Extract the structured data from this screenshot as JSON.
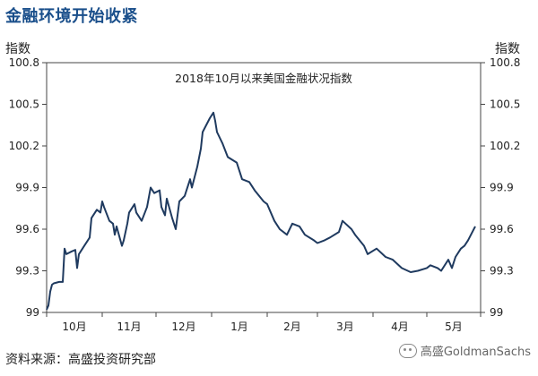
{
  "header": {
    "title": "金融环境开始收紧"
  },
  "axis_unit": {
    "left": "指数",
    "right": "指数"
  },
  "source": "资料来源：高盛投资研究部",
  "watermark": "高盛GoldmanSachs",
  "colors": {
    "title": "#1a4f8b",
    "line": "#1f3a5f",
    "axis": "#444444"
  },
  "chart_data": {
    "type": "line",
    "title": "2018年10月以来美国金融状况指数",
    "xlabel": "",
    "ylabel": "指数",
    "ylim": [
      99.0,
      100.8
    ],
    "yticks": [
      99,
      99.3,
      99.6,
      99.9,
      100.2,
      100.5,
      100.8
    ],
    "ytick_labels": [
      "99",
      "99.3",
      "99.6",
      "99.9",
      "100.2",
      "100.5",
      "100.8"
    ],
    "xtick_labels": [
      "10月",
      "11月",
      "12月",
      "1月",
      "2月",
      "3月",
      "4月",
      "5月"
    ],
    "grid": false,
    "legend": "none",
    "series": [
      {
        "x": [
          "2018-10-01",
          "2018-10-02",
          "2018-10-03",
          "2018-10-04",
          "2018-10-05",
          "2018-10-08",
          "2018-10-10",
          "2018-10-11",
          "2018-10-12",
          "2018-10-15",
          "2018-10-17",
          "2018-10-18",
          "2018-10-19",
          "2018-10-22",
          "2018-10-24",
          "2018-10-25",
          "2018-10-26",
          "2018-10-29",
          "2018-10-31",
          "2018-11-01",
          "2018-11-02",
          "2018-11-05",
          "2018-11-07",
          "2018-11-08",
          "2018-11-09",
          "2018-11-12",
          "2018-11-13",
          "2018-11-15",
          "2018-11-16",
          "2018-11-19",
          "2018-11-20",
          "2018-11-23",
          "2018-11-26",
          "2018-11-28",
          "2018-11-30",
          "2018-12-03",
          "2018-12-04",
          "2018-12-06",
          "2018-12-07",
          "2018-12-10",
          "2018-12-12",
          "2018-12-14",
          "2018-12-17",
          "2018-12-18",
          "2018-12-20",
          "2018-12-21",
          "2018-12-24",
          "2018-12-26",
          "2018-12-27",
          "2018-12-31",
          "2019-01-02",
          "2019-01-03",
          "2019-01-04",
          "2019-01-07",
          "2019-01-10",
          "2019-01-15",
          "2019-01-18",
          "2019-01-22",
          "2019-01-25",
          "2019-01-30",
          "2019-02-01",
          "2019-02-05",
          "2019-02-08",
          "2019-02-12",
          "2019-02-15",
          "2019-02-19",
          "2019-02-22",
          "2019-02-27",
          "2019-03-01",
          "2019-03-05",
          "2019-03-08",
          "2019-03-13",
          "2019-03-15",
          "2019-03-20",
          "2019-03-22",
          "2019-03-27",
          "2019-03-29",
          "2019-04-03",
          "2019-04-08",
          "2019-04-12",
          "2019-04-17",
          "2019-04-22",
          "2019-04-26",
          "2019-05-01",
          "2019-05-03",
          "2019-05-07",
          "2019-05-09",
          "2019-05-13",
          "2019-05-15",
          "2019-05-17",
          "2019-05-20",
          "2019-05-22",
          "2019-05-24",
          "2019-05-28"
        ],
        "values": [
          99.02,
          99.05,
          99.15,
          99.2,
          99.21,
          99.22,
          99.22,
          99.46,
          99.42,
          99.44,
          99.45,
          99.32,
          99.42,
          99.48,
          99.52,
          99.54,
          99.68,
          99.74,
          99.72,
          99.8,
          99.76,
          99.66,
          99.64,
          99.56,
          99.62,
          99.48,
          99.52,
          99.64,
          99.72,
          99.78,
          99.72,
          99.66,
          99.76,
          99.9,
          99.86,
          99.88,
          99.76,
          99.7,
          99.82,
          99.68,
          99.6,
          99.8,
          99.84,
          99.88,
          99.96,
          99.9,
          100.05,
          100.18,
          100.3,
          100.4,
          100.44,
          100.38,
          100.3,
          100.22,
          100.12,
          100.08,
          99.96,
          99.94,
          99.88,
          99.8,
          99.78,
          99.66,
          99.6,
          99.56,
          99.64,
          99.62,
          99.56,
          99.52,
          99.5,
          99.52,
          99.54,
          99.58,
          99.66,
          99.6,
          99.56,
          99.48,
          99.42,
          99.46,
          99.4,
          99.38,
          99.32,
          99.29,
          99.3,
          99.32,
          99.34,
          99.32,
          99.3,
          99.38,
          99.32,
          99.4,
          99.46,
          99.48,
          99.52,
          99.62
        ]
      }
    ]
  }
}
